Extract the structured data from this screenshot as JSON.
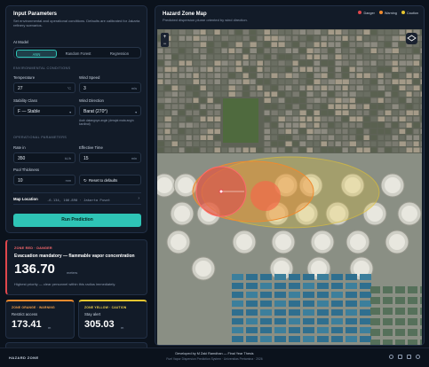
{
  "sidebar": {
    "title": "Input Parameters",
    "subtitle": "Set environmental and operational conditions. Defaults are calibrated for Jakarta refinery scenarios.",
    "model_label": "AI Model",
    "models": [
      "ANN",
      "Random Forest",
      "Regression"
    ],
    "env_heading": "ENVIRONMENTAL CONDITIONS",
    "temperature": {
      "label": "Temperature",
      "value": "27",
      "unit": "°C"
    },
    "wind_speed": {
      "label": "Wind Speed",
      "value": "3",
      "unit": "m/s"
    },
    "stability": {
      "label": "Stability Class",
      "value": "F — Stable"
    },
    "wind_direction": {
      "label": "Wind Direction",
      "value": "Barat (270°)",
      "hint": "Arah datangnya angin (derajat mata angin kardinal)"
    },
    "op_heading": "OPERATIONAL PARAMETERS",
    "rate": {
      "label": "Rate in",
      "value": "350",
      "unit": "kL/h"
    },
    "time": {
      "label": "Effective Time",
      "value": "15",
      "unit": "min"
    },
    "thickness": {
      "label": "Pool Thickness",
      "value": "10",
      "unit": "mm"
    },
    "reset": "Reset to defaults",
    "location": {
      "label": "Map Location",
      "value": "-6.134, 106.890 · Jakarta Pusat"
    },
    "run": "Run Prediction"
  },
  "results": {
    "red": {
      "tag": "ZONE RED · DANGER",
      "title": "Evacuation mandatory — flammable vapor concentration",
      "value": "136.70",
      "unit": "meters",
      "note": "Highest priority — clear personnel within this radius immediately."
    },
    "orange": {
      "tag": "ZONE ORANGE · WARNING",
      "title": "Restrict access",
      "value": "173.41",
      "unit": "m"
    },
    "yellow": {
      "tag": "ZONE YELLOW · CAUTION",
      "title": "Stay alert",
      "value": "305.03",
      "unit": "m"
    }
  },
  "map": {
    "title": "Hazard Zone Map",
    "subtitle": "Predicted dispersion plume oriented by wind direction.",
    "legend": [
      "Danger",
      "Warning",
      "Caution"
    ]
  },
  "footer": {
    "brand": "HAZARD ZONE",
    "credit": "Developed by M Zaki Ramdhan — Final Year Thesis",
    "system": "Fuel Vapor Dispersion Prediction System · Universitas Pertamina · 2026"
  }
}
